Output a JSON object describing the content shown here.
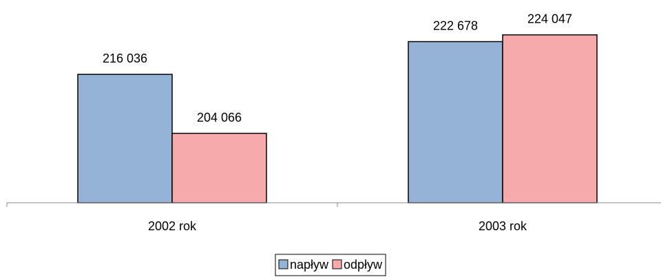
{
  "chart_data": {
    "type": "bar",
    "categories": [
      "2002 rok",
      "2003 rok"
    ],
    "series": [
      {
        "name": "napływ",
        "color": "#95b3d7",
        "values": [
          216036,
          222678
        ],
        "value_labels": [
          "216 036",
          "222 678"
        ]
      },
      {
        "name": "odpływ",
        "color": "#f7aaab",
        "values": [
          204066,
          224047
        ],
        "value_labels": [
          "204 066",
          "224 047"
        ]
      }
    ],
    "ylim": [
      190000,
      230000
    ],
    "legend": "bottom"
  }
}
